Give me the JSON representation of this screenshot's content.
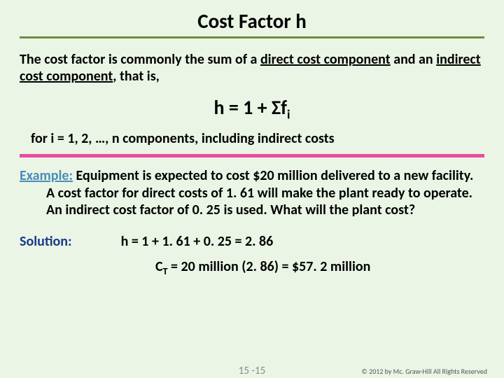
{
  "title": "Cost Factor h",
  "intro_pre": "The cost factor is commonly the sum of a ",
  "intro_u1": "direct cost component",
  "intro_mid": " and an ",
  "intro_u2": "indirect cost component",
  "intro_post": ", that is,",
  "formula_lhs": "h = 1 + Σf",
  "formula_sub": "i",
  "for_line": "for i = 1, 2, …, n components, including indirect costs",
  "example_label": "Example:",
  "example_body": " Equipment is expected to cost $20 million delivered to a new facility.  A cost factor for direct costs of 1. 61 will make the plant ready to operate. An indirect cost factor of 0. 25 is used. What will the plant cost?",
  "solution_label": "Solution:",
  "solution_h": "h = 1 + 1. 61 + 0. 25 = 2. 86",
  "ct_pre": "C",
  "ct_sub": "T",
  "ct_mid": " = 20 million (2. 86) = ",
  "ct_result": "$57. 2 million",
  "page_num": "15 -15",
  "copyright": "© 2012 by Mc. Graw-Hill     All Rights Reserved",
  "colors": {
    "background": "#eaf5e5",
    "title_underline": "#6b8e3d",
    "pink_line": "#ec4aa0",
    "example_label": "#4a8db8",
    "solution_label": "#1a3a8a",
    "footer_text": "#8a8a8a"
  }
}
